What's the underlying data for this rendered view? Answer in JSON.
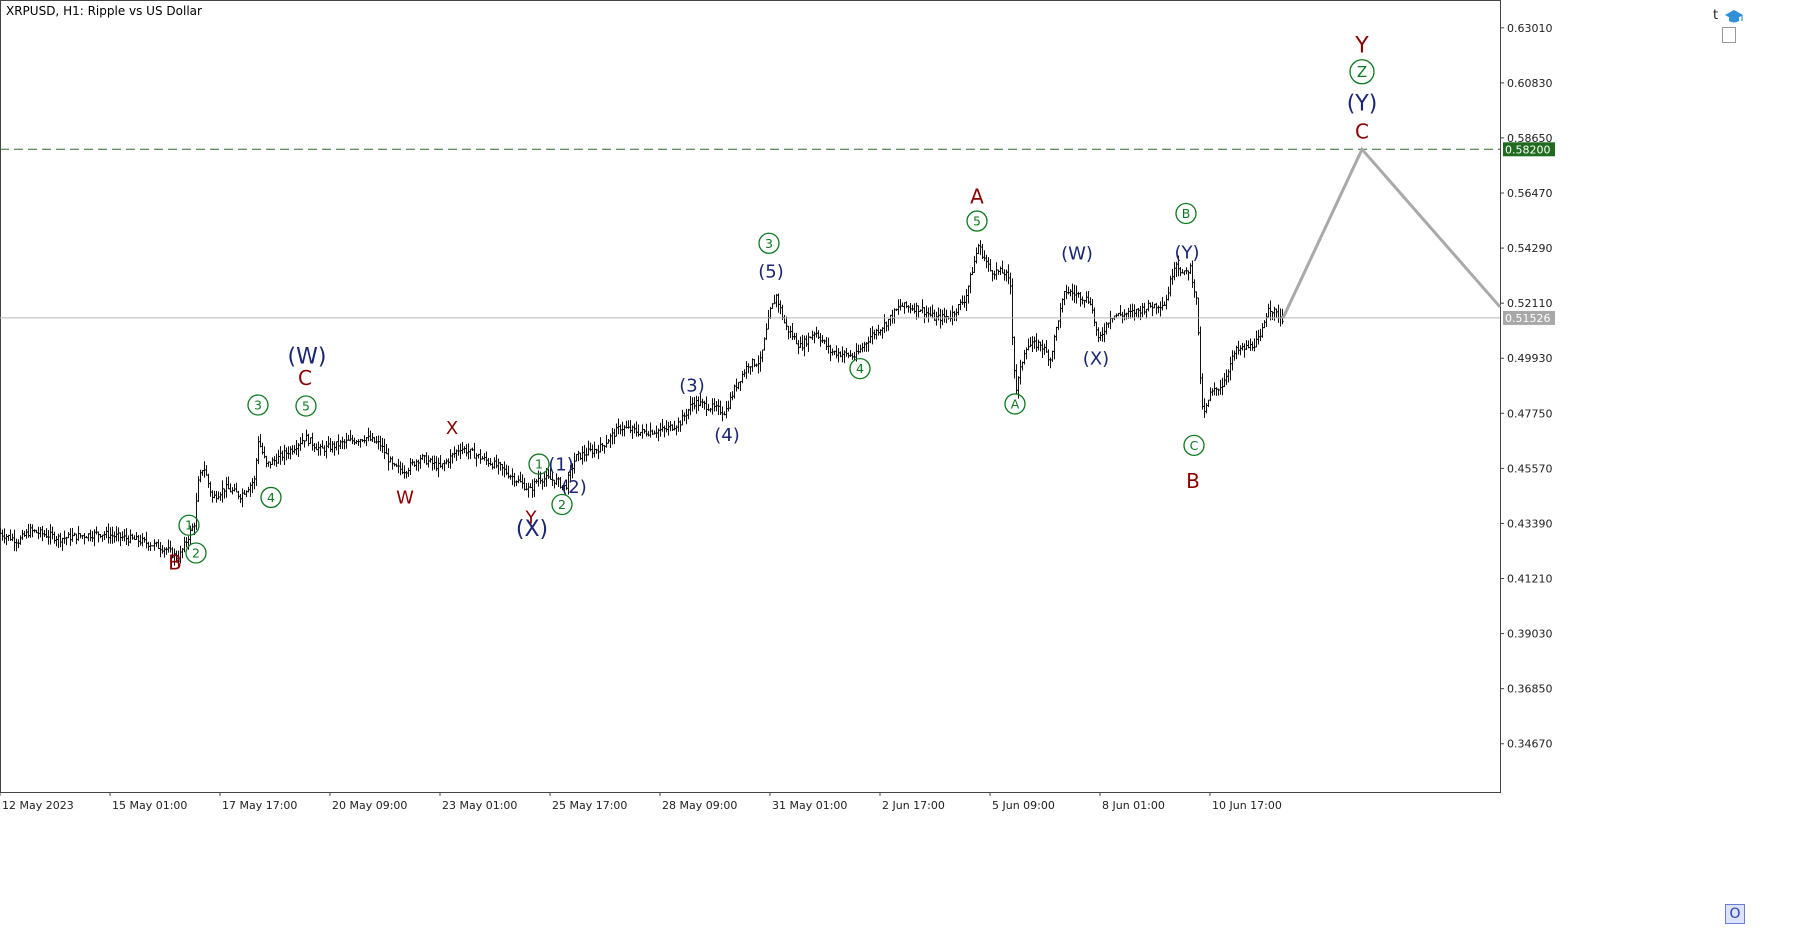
{
  "title": "XRPUSD, H1:  Ripple vs US Dollar",
  "buttons": {
    "t_label": "t",
    "o_label": "O"
  },
  "colors": {
    "maroon": "#8b0000",
    "green": "#0b7a1d",
    "navy": "#1a2573",
    "bars": "#111111",
    "projection": "#a9a9a9",
    "target_line": "#2f6b2f",
    "target_tag": "#1f6b1f",
    "price_tag": "#a8a8a8"
  },
  "chart_data": {
    "type": "bar",
    "symbol": "XRPUSD",
    "timeframe": "H1",
    "title": "XRPUSD, H1:  Ripple vs US Dollar",
    "ylim": [
      0.3276,
      0.6411
    ],
    "xlim": [
      0,
      1500
    ],
    "y_ticks": [
      "0.63010",
      "0.60830",
      "0.58650",
      "0.56470",
      "0.54290",
      "0.52110",
      "0.49930",
      "0.47750",
      "0.45570",
      "0.43390",
      "0.41210",
      "0.39030",
      "0.36850",
      "0.34670"
    ],
    "x_ticks": [
      {
        "label": "12 May 2023",
        "x": 0
      },
      {
        "label": "15 May 01:00",
        "x": 110
      },
      {
        "label": "17 May 17:00",
        "x": 220
      },
      {
        "label": "20 May 09:00",
        "x": 330
      },
      {
        "label": "23 May 01:00",
        "x": 440
      },
      {
        "label": "25 May 17:00",
        "x": 550
      },
      {
        "label": "28 May 09:00",
        "x": 660
      },
      {
        "label": "31 May 01:00",
        "x": 770
      },
      {
        "label": "2 Jun 17:00",
        "x": 880
      },
      {
        "label": "5 Jun 09:00",
        "x": 990
      },
      {
        "label": "8 Jun 01:00",
        "x": 1100
      },
      {
        "label": "10 Jun 17:00",
        "x": 1210
      }
    ],
    "current_price": 0.51526,
    "current_price_label": "0.51526",
    "target_price": 0.582,
    "target_price_label": "0.58200",
    "path": [
      [
        0,
        0.43
      ],
      [
        18,
        0.427
      ],
      [
        30,
        0.431
      ],
      [
        60,
        0.428
      ],
      [
        100,
        0.43
      ],
      [
        140,
        0.427
      ],
      [
        165,
        0.424
      ],
      [
        178,
        0.42
      ],
      [
        185,
        0.426
      ],
      [
        194,
        0.434
      ],
      [
        198,
        0.45
      ],
      [
        203,
        0.457
      ],
      [
        212,
        0.444
      ],
      [
        225,
        0.448
      ],
      [
        240,
        0.445
      ],
      [
        254,
        0.451
      ],
      [
        258,
        0.467
      ],
      [
        266,
        0.457
      ],
      [
        275,
        0.459
      ],
      [
        290,
        0.463
      ],
      [
        305,
        0.468
      ],
      [
        320,
        0.463
      ],
      [
        345,
        0.466
      ],
      [
        365,
        0.468
      ],
      [
        380,
        0.465
      ],
      [
        393,
        0.456
      ],
      [
        405,
        0.455
      ],
      [
        420,
        0.46
      ],
      [
        440,
        0.456
      ],
      [
        460,
        0.464
      ],
      [
        480,
        0.46
      ],
      [
        500,
        0.456
      ],
      [
        520,
        0.45
      ],
      [
        530,
        0.447
      ],
      [
        538,
        0.452
      ],
      [
        555,
        0.451
      ],
      [
        565,
        0.448
      ],
      [
        575,
        0.46
      ],
      [
        600,
        0.464
      ],
      [
        620,
        0.472
      ],
      [
        640,
        0.47
      ],
      [
        665,
        0.471
      ],
      [
        680,
        0.474
      ],
      [
        693,
        0.482
      ],
      [
        710,
        0.48
      ],
      [
        725,
        0.478
      ],
      [
        735,
        0.488
      ],
      [
        748,
        0.497
      ],
      [
        760,
        0.498
      ],
      [
        770,
        0.518
      ],
      [
        776,
        0.524
      ],
      [
        785,
        0.512
      ],
      [
        800,
        0.504
      ],
      [
        815,
        0.51
      ],
      [
        830,
        0.502
      ],
      [
        855,
        0.5
      ],
      [
        870,
        0.508
      ],
      [
        885,
        0.513
      ],
      [
        900,
        0.52
      ],
      [
        920,
        0.519
      ],
      [
        935,
        0.515
      ],
      [
        950,
        0.516
      ],
      [
        965,
        0.523
      ],
      [
        978,
        0.544
      ],
      [
        990,
        0.534
      ],
      [
        1005,
        0.533
      ],
      [
        1010,
        0.528
      ],
      [
        1013,
        0.499
      ],
      [
        1016,
        0.487
      ],
      [
        1025,
        0.504
      ],
      [
        1040,
        0.505
      ],
      [
        1050,
        0.499
      ],
      [
        1058,
        0.515
      ],
      [
        1065,
        0.526
      ],
      [
        1080,
        0.524
      ],
      [
        1090,
        0.522
      ],
      [
        1098,
        0.506
      ],
      [
        1110,
        0.516
      ],
      [
        1130,
        0.517
      ],
      [
        1150,
        0.52
      ],
      [
        1165,
        0.521
      ],
      [
        1175,
        0.538
      ],
      [
        1183,
        0.532
      ],
      [
        1190,
        0.535
      ],
      [
        1197,
        0.52
      ],
      [
        1200,
        0.49
      ],
      [
        1203,
        0.476
      ],
      [
        1210,
        0.485
      ],
      [
        1222,
        0.489
      ],
      [
        1235,
        0.502
      ],
      [
        1250,
        0.504
      ],
      [
        1260,
        0.507
      ],
      [
        1268,
        0.52
      ],
      [
        1275,
        0.517
      ],
      [
        1283,
        0.515
      ]
    ],
    "projection": [
      [
        1283,
        0.5152
      ],
      [
        1362,
        0.582
      ],
      [
        1500,
        0.5196
      ]
    ],
    "annotations": [
      {
        "text": "B",
        "x": 175,
        "y": 0.4185,
        "color": "maroon",
        "size": 20
      },
      {
        "text": "1",
        "x": 189,
        "y": 0.4332,
        "color": "green",
        "circled": true
      },
      {
        "text": "2",
        "x": 196,
        "y": 0.4222,
        "color": "green",
        "circled": true
      },
      {
        "text": "3",
        "x": 258,
        "y": 0.4808,
        "color": "green",
        "circled": true
      },
      {
        "text": "4",
        "x": 271,
        "y": 0.4442,
        "color": "green",
        "circled": true
      },
      {
        "text": "(W)",
        "x": 307,
        "y": 0.5003,
        "color": "navy",
        "size": 22
      },
      {
        "text": "C",
        "x": 305,
        "y": 0.4914,
        "color": "maroon",
        "size": 20
      },
      {
        "text": "5",
        "x": 306,
        "y": 0.4804,
        "color": "green",
        "circled": true
      },
      {
        "text": "X",
        "x": 452,
        "y": 0.4718,
        "color": "maroon",
        "size": 18
      },
      {
        "text": "W",
        "x": 405,
        "y": 0.4442,
        "color": "maroon",
        "size": 18
      },
      {
        "text": "1",
        "x": 539,
        "y": 0.4574,
        "color": "green",
        "circled": true
      },
      {
        "text": "(1)",
        "x": 561,
        "y": 0.4574,
        "color": "navy",
        "size": 18
      },
      {
        "text": "(2)",
        "x": 574,
        "y": 0.4484,
        "color": "navy",
        "size": 18
      },
      {
        "text": "2",
        "x": 562,
        "y": 0.4414,
        "color": "green",
        "circled": true
      },
      {
        "text": "Y",
        "x": 531,
        "y": 0.4364,
        "color": "maroon",
        "size": 18
      },
      {
        "text": "(X)",
        "x": 532,
        "y": 0.432,
        "color": "navy",
        "size": 22
      },
      {
        "text": "(3)",
        "x": 692,
        "y": 0.4886,
        "color": "navy",
        "size": 18
      },
      {
        "text": "(4)",
        "x": 727,
        "y": 0.469,
        "color": "navy",
        "size": 18
      },
      {
        "text": "3",
        "x": 769,
        "y": 0.5448,
        "color": "green",
        "circled": true
      },
      {
        "text": "(5)",
        "x": 771,
        "y": 0.5338,
        "color": "navy",
        "size": 18
      },
      {
        "text": "4",
        "x": 860,
        "y": 0.4952,
        "color": "green",
        "circled": true
      },
      {
        "text": "A",
        "x": 977,
        "y": 0.5634,
        "color": "maroon",
        "size": 20
      },
      {
        "text": "5",
        "x": 977,
        "y": 0.5536,
        "color": "green",
        "circled": true
      },
      {
        "text": "A",
        "x": 1015,
        "y": 0.4812,
        "color": "green",
        "circled": true
      },
      {
        "text": "(W)",
        "x": 1077,
        "y": 0.5408,
        "color": "navy",
        "size": 18
      },
      {
        "text": "(X)",
        "x": 1096,
        "y": 0.4994,
        "color": "navy",
        "size": 18
      },
      {
        "text": "B",
        "x": 1186,
        "y": 0.5566,
        "color": "green",
        "circled": true
      },
      {
        "text": "(Y)",
        "x": 1187,
        "y": 0.5412,
        "color": "navy",
        "size": 18
      },
      {
        "text": "C",
        "x": 1194,
        "y": 0.4648,
        "color": "green",
        "circled": true
      },
      {
        "text": "B",
        "x": 1193,
        "y": 0.4508,
        "color": "maroon",
        "size": 20
      },
      {
        "text": "Y",
        "x": 1362,
        "y": 0.6234,
        "color": "maroon",
        "size": 22
      },
      {
        "text": "Z",
        "x": 1362,
        "y": 0.6127,
        "color": "green",
        "circled": true,
        "size": 24
      },
      {
        "text": "(Y)",
        "x": 1362,
        "y": 0.6005,
        "color": "navy",
        "size": 22
      },
      {
        "text": "C",
        "x": 1362,
        "y": 0.589,
        "color": "maroon",
        "size": 20
      }
    ]
  }
}
